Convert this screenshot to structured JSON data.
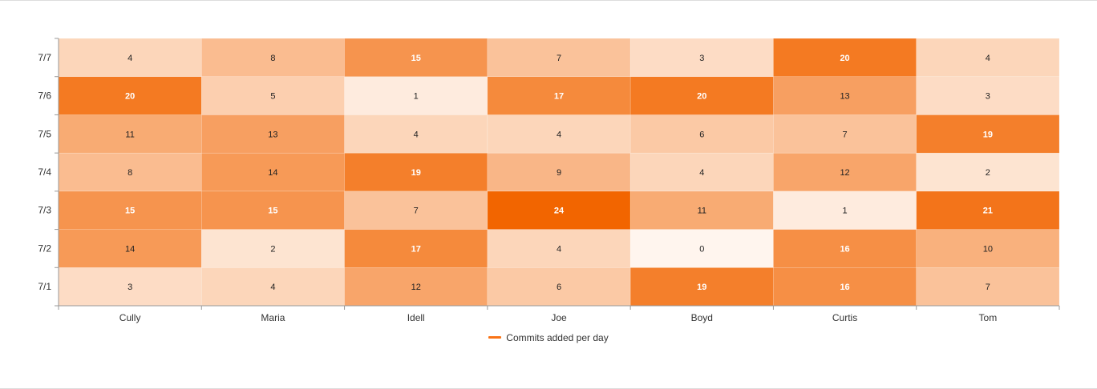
{
  "chart_data": {
    "type": "heatmap",
    "title": "",
    "xlabel": "",
    "ylabel": "",
    "x_categories": [
      "Cully",
      "Maria",
      "Idell",
      "Joe",
      "Boyd",
      "Curtis",
      "Tom"
    ],
    "y_categories": [
      "7/1",
      "7/2",
      "7/3",
      "7/4",
      "7/5",
      "7/6",
      "7/7"
    ],
    "series_name": "Commits added per day",
    "values": [
      [
        3,
        4,
        12,
        6,
        19,
        16,
        7
      ],
      [
        14,
        2,
        17,
        4,
        0,
        16,
        10
      ],
      [
        15,
        15,
        7,
        24,
        11,
        1,
        21
      ],
      [
        8,
        14,
        19,
        9,
        4,
        12,
        2
      ],
      [
        11,
        13,
        4,
        4,
        6,
        7,
        19
      ],
      [
        20,
        5,
        1,
        17,
        20,
        13,
        3
      ],
      [
        4,
        8,
        15,
        7,
        3,
        20,
        4
      ]
    ],
    "value_range": [
      0,
      24
    ],
    "color_low": "#fff5ee",
    "color_high": "#f26500",
    "legend_color": "#f97316",
    "legend_position": "bottom-center",
    "grid": false
  }
}
